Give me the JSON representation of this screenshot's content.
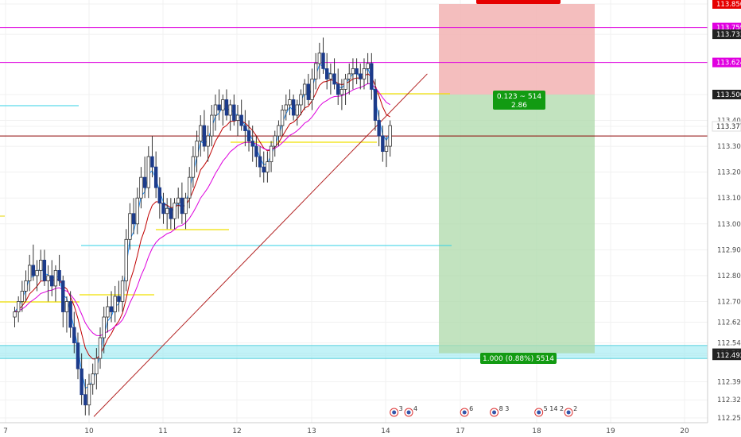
{
  "chart_data": {
    "type": "candlestick",
    "x_ticks": [
      "7",
      "10",
      "11",
      "12",
      "13",
      "14",
      "17",
      "18",
      "19",
      "20"
    ],
    "y_ticks": [
      113.85,
      113.759,
      113.733,
      113.624,
      113.5,
      113.4,
      113.377,
      113.3,
      113.2,
      113.1,
      113.0,
      112.9,
      112.8,
      112.7,
      112.62,
      112.54,
      112.5,
      112.492,
      112.39,
      112.32,
      112.25
    ],
    "y_tick_labels": [
      "113.850",
      "113.759",
      "113.733",
      "113.624",
      "113.500",
      "113.400",
      "113.377",
      "113.300",
      "113.200",
      "113.100",
      "113.000",
      "112.900",
      "112.800",
      "112.700",
      "112.620",
      "112.540",
      "112.500",
      "112.492",
      "112.390",
      "112.320",
      "112.250"
    ],
    "ylim": [
      112.24,
      113.87
    ],
    "price_tags": [
      {
        "value": 113.85,
        "label": "113.850",
        "color": "#e60000"
      },
      {
        "value": 113.759,
        "label": "113.759",
        "color": "#e000e0"
      },
      {
        "value": 113.733,
        "label": "113.733",
        "color": "#222222"
      },
      {
        "value": 113.624,
        "label": "113.624",
        "color": "#e000e0"
      },
      {
        "value": 113.5,
        "label": "113.500",
        "color": "#222222"
      },
      {
        "value": 113.377,
        "label": "113.377",
        "color": "#ffffff"
      },
      {
        "value": 112.5,
        "label": "112.500",
        "color": "#222222"
      },
      {
        "value": 112.492,
        "label": "112.492",
        "color": "#222222"
      }
    ],
    "horizontal_lines": [
      {
        "value": 113.759,
        "color": "#e000e0"
      },
      {
        "value": 113.624,
        "color": "#e000e0"
      },
      {
        "value": 113.34,
        "color": "#8b0000"
      }
    ],
    "trend_line": {
      "from": [
        0.0,
        112.255
      ],
      "to": [
        4.55,
        113.58
      ],
      "color": "#b22222"
    },
    "zone": {
      "from": 112.48,
      "to": 112.53,
      "color": "#8fe8f0"
    },
    "position": {
      "entry": 113.5,
      "target": 112.5,
      "stop": 113.85,
      "stop_label": "",
      "risk_label_line1": "0.123 ~ 514",
      "risk_label_line2": "2.86",
      "target_label": "1.000 (0.88%) 5514"
    },
    "ema_colors": {
      "fast": "#1e90ff",
      "mid": "#c00000",
      "slow": "#dd00dd"
    },
    "candles": [
      [
        -1.0,
        112.64,
        112.68,
        112.6,
        112.66
      ],
      [
        -0.95,
        112.66,
        112.72,
        112.62,
        112.7
      ],
      [
        -0.9,
        112.7,
        112.78,
        112.66,
        112.74
      ],
      [
        -0.85,
        112.74,
        112.82,
        112.7,
        112.78
      ],
      [
        -0.8,
        112.78,
        112.88,
        112.74,
        112.84
      ],
      [
        -0.75,
        112.84,
        112.92,
        112.78,
        112.8
      ],
      [
        -0.7,
        112.8,
        112.86,
        112.74,
        112.82
      ],
      [
        -0.65,
        112.82,
        112.9,
        112.78,
        112.86
      ],
      [
        -0.6,
        112.86,
        112.9,
        112.76,
        112.78
      ],
      [
        -0.55,
        112.78,
        112.84,
        112.7,
        112.8
      ],
      [
        -0.5,
        112.8,
        112.86,
        112.72,
        112.76
      ],
      [
        -0.45,
        112.76,
        112.84,
        112.7,
        112.82
      ],
      [
        -0.4,
        112.82,
        112.88,
        112.76,
        112.78
      ],
      [
        -0.35,
        112.78,
        112.8,
        112.6,
        112.66
      ],
      [
        -0.3,
        112.66,
        112.72,
        112.58,
        112.7
      ],
      [
        -0.25,
        112.7,
        112.74,
        112.56,
        112.6
      ],
      [
        -0.2,
        112.6,
        112.66,
        112.5,
        112.54
      ],
      [
        -0.15,
        112.54,
        112.58,
        112.4,
        112.44
      ],
      [
        -0.1,
        112.44,
        112.5,
        112.3,
        112.34
      ],
      [
        -0.05,
        112.34,
        112.4,
        112.26,
        112.3
      ],
      [
        0.0,
        112.3,
        112.42,
        112.26,
        112.38
      ],
      [
        0.05,
        112.38,
        112.46,
        112.34,
        112.42
      ],
      [
        0.1,
        112.42,
        112.52,
        112.36,
        112.48
      ],
      [
        0.15,
        112.48,
        112.6,
        112.44,
        112.56
      ],
      [
        0.2,
        112.56,
        112.68,
        112.5,
        112.64
      ],
      [
        0.25,
        112.64,
        112.72,
        112.58,
        112.68
      ],
      [
        0.3,
        112.68,
        112.74,
        112.62,
        112.66
      ],
      [
        0.35,
        112.66,
        112.76,
        112.62,
        112.72
      ],
      [
        0.4,
        112.72,
        112.78,
        112.66,
        112.7
      ],
      [
        0.45,
        112.7,
        112.8,
        112.66,
        112.78
      ],
      [
        0.5,
        112.78,
        112.98,
        112.74,
        112.94
      ],
      [
        0.55,
        112.94,
        113.08,
        112.9,
        113.04
      ],
      [
        0.6,
        113.04,
        113.1,
        112.96,
        113.0
      ],
      [
        0.65,
        113.0,
        113.14,
        112.96,
        113.1
      ],
      [
        0.7,
        113.1,
        113.22,
        113.06,
        113.18
      ],
      [
        0.75,
        113.18,
        113.26,
        113.1,
        113.14
      ],
      [
        0.8,
        113.14,
        113.3,
        113.1,
        113.26
      ],
      [
        0.85,
        113.26,
        113.34,
        113.18,
        113.22
      ],
      [
        0.9,
        113.22,
        113.28,
        113.1,
        113.14
      ],
      [
        0.95,
        113.14,
        113.18,
        113.02,
        113.08
      ],
      [
        1.0,
        113.08,
        113.12,
        113.0,
        113.04
      ],
      [
        1.05,
        113.04,
        113.1,
        112.98,
        113.06
      ],
      [
        1.1,
        113.06,
        113.1,
        112.98,
        113.02
      ],
      [
        1.15,
        113.02,
        113.1,
        112.98,
        113.08
      ],
      [
        1.2,
        113.08,
        113.14,
        113.02,
        113.1
      ],
      [
        1.25,
        113.1,
        113.16,
        113.0,
        113.04
      ],
      [
        1.3,
        113.04,
        113.12,
        112.98,
        113.1
      ],
      [
        1.35,
        113.1,
        113.22,
        113.06,
        113.18
      ],
      [
        1.4,
        113.18,
        113.3,
        113.14,
        113.26
      ],
      [
        1.45,
        113.26,
        113.36,
        113.2,
        113.32
      ],
      [
        1.5,
        113.32,
        113.42,
        113.26,
        113.38
      ],
      [
        1.55,
        113.38,
        113.44,
        113.28,
        113.3
      ],
      [
        1.6,
        113.3,
        113.38,
        113.24,
        113.34
      ],
      [
        1.65,
        113.34,
        113.46,
        113.3,
        113.42
      ],
      [
        1.7,
        113.42,
        113.5,
        113.36,
        113.46
      ],
      [
        1.75,
        113.46,
        113.52,
        113.4,
        113.44
      ],
      [
        1.8,
        113.44,
        113.5,
        113.38,
        113.48
      ],
      [
        1.85,
        113.48,
        113.52,
        113.4,
        113.42
      ],
      [
        1.9,
        113.42,
        113.48,
        113.36,
        113.46
      ],
      [
        1.95,
        113.46,
        113.5,
        113.38,
        113.4
      ],
      [
        2.0,
        113.4,
        113.46,
        113.34,
        113.42
      ],
      [
        2.05,
        113.42,
        113.48,
        113.36,
        113.38
      ],
      [
        2.1,
        113.38,
        113.44,
        113.3,
        113.36
      ],
      [
        2.15,
        113.36,
        113.4,
        113.28,
        113.32
      ],
      [
        2.2,
        113.32,
        113.38,
        113.24,
        113.3
      ],
      [
        2.25,
        113.3,
        113.34,
        113.22,
        113.26
      ],
      [
        2.3,
        113.26,
        113.3,
        113.18,
        113.22
      ],
      [
        2.35,
        113.22,
        113.28,
        113.16,
        113.2
      ],
      [
        2.4,
        113.2,
        113.28,
        113.16,
        113.24
      ],
      [
        2.45,
        113.24,
        113.32,
        113.2,
        113.3
      ],
      [
        2.5,
        113.3,
        113.36,
        113.26,
        113.34
      ],
      [
        2.55,
        113.34,
        113.4,
        113.3,
        113.38
      ],
      [
        2.6,
        113.38,
        113.46,
        113.34,
        113.44
      ],
      [
        2.65,
        113.44,
        113.5,
        113.4,
        113.46
      ],
      [
        2.7,
        113.46,
        113.52,
        113.42,
        113.48
      ],
      [
        2.75,
        113.48,
        113.5,
        113.4,
        113.42
      ],
      [
        2.8,
        113.42,
        113.48,
        113.38,
        113.46
      ],
      [
        2.85,
        113.46,
        113.52,
        113.42,
        113.5
      ],
      [
        2.9,
        113.5,
        113.56,
        113.44,
        113.54
      ],
      [
        2.95,
        113.54,
        113.58,
        113.46,
        113.48
      ],
      [
        3.0,
        113.48,
        113.6,
        113.44,
        113.56
      ],
      [
        3.05,
        113.56,
        113.66,
        113.52,
        113.62
      ],
      [
        3.1,
        113.62,
        113.7,
        113.56,
        113.66
      ],
      [
        3.15,
        113.66,
        113.72,
        113.58,
        113.6
      ],
      [
        3.2,
        113.6,
        113.66,
        113.52,
        113.56
      ],
      [
        3.25,
        113.56,
        113.62,
        113.5,
        113.58
      ],
      [
        3.3,
        113.58,
        113.64,
        113.52,
        113.54
      ],
      [
        3.35,
        113.54,
        113.6,
        113.46,
        113.5
      ],
      [
        3.4,
        113.5,
        113.56,
        113.44,
        113.52
      ],
      [
        3.45,
        113.52,
        113.58,
        113.46,
        113.56
      ],
      [
        3.5,
        113.56,
        113.62,
        113.5,
        113.58
      ],
      [
        3.55,
        113.58,
        113.64,
        113.52,
        113.6
      ],
      [
        3.6,
        113.6,
        113.64,
        113.54,
        113.58
      ],
      [
        3.65,
        113.58,
        113.62,
        113.52,
        113.56
      ],
      [
        3.7,
        113.56,
        113.64,
        113.52,
        113.6
      ],
      [
        3.75,
        113.6,
        113.66,
        113.54,
        113.62
      ],
      [
        3.8,
        113.62,
        113.66,
        113.48,
        113.52
      ],
      [
        3.85,
        113.52,
        113.56,
        113.36,
        113.4
      ],
      [
        3.9,
        113.4,
        113.44,
        113.3,
        113.34
      ],
      [
        3.95,
        113.34,
        113.38,
        113.24,
        113.28
      ],
      [
        4.0,
        113.28,
        113.34,
        113.22,
        113.3
      ],
      [
        4.05,
        113.3,
        113.4,
        113.26,
        113.38
      ]
    ],
    "events": [
      {
        "x": 4.05,
        "count": "3"
      },
      {
        "x": 4.3,
        "count": "4"
      },
      {
        "x": 5.05,
        "count": "6"
      },
      {
        "x": 5.45,
        "count": "8 3"
      },
      {
        "x": 6.05,
        "count": "5 14 2"
      },
      {
        "x": 6.45,
        "count": "2"
      }
    ]
  }
}
